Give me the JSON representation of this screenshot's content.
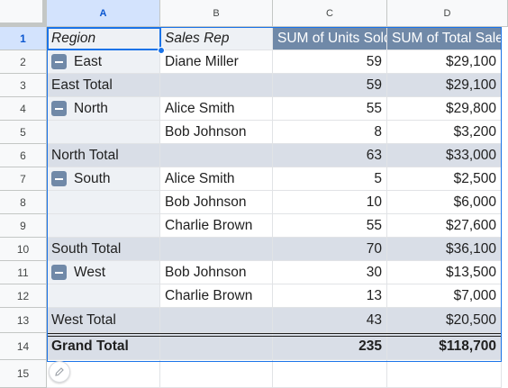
{
  "columns": [
    "A",
    "B",
    "C",
    "D"
  ],
  "rows": [
    "1",
    "2",
    "3",
    "4",
    "5",
    "6",
    "7",
    "8",
    "9",
    "10",
    "11",
    "12",
    "13",
    "14",
    "15"
  ],
  "header": {
    "region": "Region",
    "sales_rep": "Sales Rep",
    "units": "SUM of Units Sold",
    "total_sales": "SUM of Total Sales"
  },
  "data_rows": [
    {
      "region": "East",
      "rep": "Diane Miller",
      "units": "59",
      "sales": "$29,100",
      "kind": "group",
      "toggle": true
    },
    {
      "region": "East Total",
      "rep": "",
      "units": "59",
      "sales": "$29,100",
      "kind": "total",
      "toggle": false
    },
    {
      "region": "North",
      "rep": "Alice Smith",
      "units": "55",
      "sales": "$29,800",
      "kind": "group",
      "toggle": true
    },
    {
      "region": "",
      "rep": "Bob Johnson",
      "units": "8",
      "sales": "$3,200",
      "kind": "group",
      "toggle": false
    },
    {
      "region": "North Total",
      "rep": "",
      "units": "63",
      "sales": "$33,000",
      "kind": "total",
      "toggle": false
    },
    {
      "region": "South",
      "rep": "Alice Smith",
      "units": "5",
      "sales": "$2,500",
      "kind": "group",
      "toggle": true
    },
    {
      "region": "",
      "rep": "Bob Johnson",
      "units": "10",
      "sales": "$6,000",
      "kind": "group",
      "toggle": false
    },
    {
      "region": "",
      "rep": "Charlie Brown",
      "units": "55",
      "sales": "$27,600",
      "kind": "group",
      "toggle": false
    },
    {
      "region": "South Total",
      "rep": "",
      "units": "70",
      "sales": "$36,100",
      "kind": "total",
      "toggle": false
    },
    {
      "region": "West",
      "rep": "Bob Johnson",
      "units": "30",
      "sales": "$13,500",
      "kind": "group",
      "toggle": true
    },
    {
      "region": "",
      "rep": "Charlie Brown",
      "units": "13",
      "sales": "$7,000",
      "kind": "group",
      "toggle": false
    },
    {
      "region": "West Total",
      "rep": "",
      "units": "43",
      "sales": "$20,500",
      "kind": "total",
      "toggle": false
    }
  ],
  "grand_total": {
    "label": "Grand Total",
    "units": "235",
    "sales": "$118,700"
  },
  "selected_cell": "A1",
  "colors": {
    "header_bg": "#7089a8",
    "band_bg": "#eef1f5",
    "total_bg": "#d9dee7",
    "selection": "#1a73e8"
  }
}
